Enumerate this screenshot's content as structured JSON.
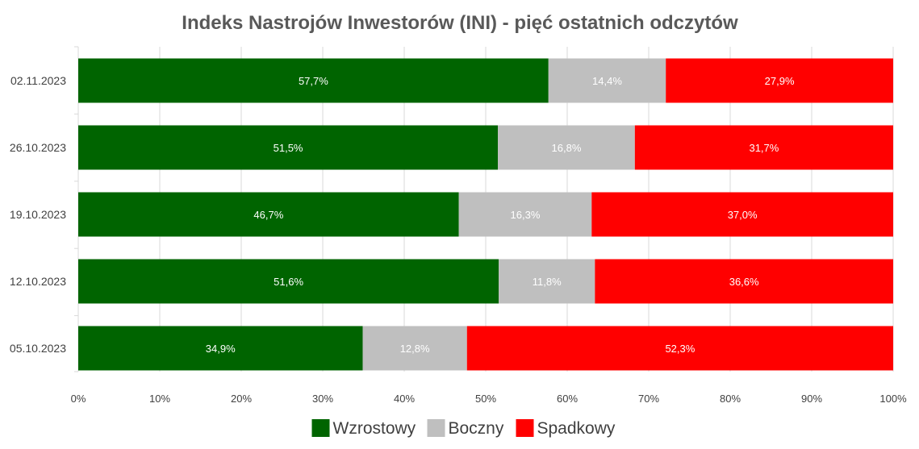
{
  "chart_data": {
    "type": "bar",
    "orientation": "horizontal",
    "stacked": true,
    "title": "Indeks Nastrojów Inwestorów (INI) - pięć ostatnich odczytów",
    "categories": [
      "02.11.2023",
      "26.10.2023",
      "19.10.2023",
      "12.10.2023",
      "05.10.2023"
    ],
    "series": [
      {
        "name": "Wzrostowy",
        "color": "#006400",
        "label_color": "#ffffff",
        "values": [
          57.7,
          51.5,
          46.7,
          51.6,
          34.9
        ],
        "labels": [
          "57,7%",
          "51,5%",
          "46,7%",
          "51,6%",
          "34,9%"
        ]
      },
      {
        "name": "Boczny",
        "color": "#bfbfbf",
        "label_color": "#ffffff",
        "values": [
          14.4,
          16.8,
          16.3,
          11.8,
          12.8
        ],
        "labels": [
          "14,4%",
          "16,8%",
          "16,3%",
          "11,8%",
          "12,8%"
        ]
      },
      {
        "name": "Spadkowy",
        "color": "#ff0000",
        "label_color": "#ffffff",
        "values": [
          27.9,
          31.7,
          37.0,
          36.6,
          52.3
        ],
        "labels": [
          "27,9%",
          "31,7%",
          "37,0%",
          "36,6%",
          "52,3%"
        ]
      }
    ],
    "xlim": [
      0,
      100
    ],
    "x_ticks": [
      "0%",
      "10%",
      "20%",
      "30%",
      "40%",
      "50%",
      "60%",
      "70%",
      "80%",
      "90%",
      "100%"
    ],
    "grid": "vertical",
    "legend_position": "bottom"
  }
}
